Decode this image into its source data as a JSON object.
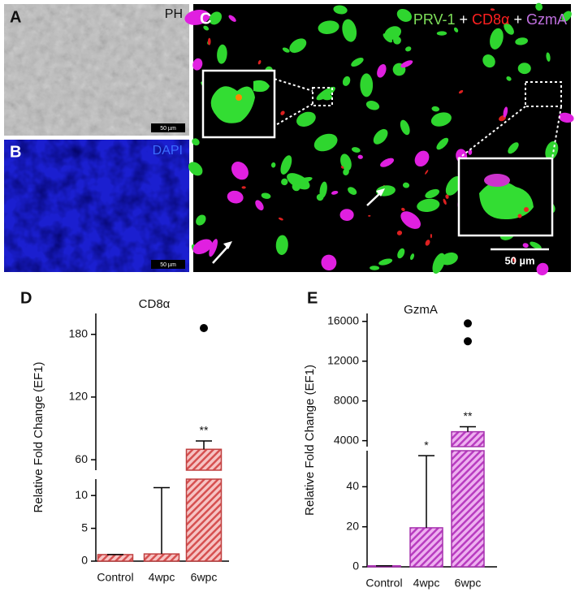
{
  "panels": [
    {
      "label": "A",
      "caption": "PH",
      "scale_bar": "50 µm"
    },
    {
      "label": "B",
      "caption": "DAPI",
      "scale_bar": "50 µm"
    },
    {
      "label": "C",
      "legend": [
        {
          "text": "PRV-1",
          "color": "#7ee05a"
        },
        {
          "text": "+",
          "color": "#ffffff"
        },
        {
          "text": "CD8α",
          "color": "#ff2020"
        },
        {
          "text": "+",
          "color": "#ffffff"
        },
        {
          "text": "GzmA",
          "color": "#c070e0"
        }
      ],
      "scale_bar": "50 µm"
    }
  ],
  "chart_data": [
    {
      "type": "bar",
      "panel_label": "D",
      "title": "CD8α",
      "ylabel": "Relative Fold Change (EF1)",
      "categories": [
        "Control",
        "4wpc",
        "6wpc"
      ],
      "values": [
        1,
        1.1,
        70
      ],
      "errors": [
        0,
        10.1,
        8
      ],
      "color": "#f3a3a3",
      "segments": [
        {
          "ylim": [
            0,
            12.5
          ],
          "yticks": [
            0,
            5,
            10
          ]
        },
        {
          "ylim": [
            50,
            200
          ],
          "yticks": [
            60,
            120,
            180
          ]
        }
      ],
      "outliers": [
        {
          "category": "6wpc",
          "value": 186
        }
      ],
      "annotations": [
        {
          "category": "6wpc",
          "text": "**"
        }
      ]
    },
    {
      "type": "bar",
      "panel_label": "E",
      "title": "GzmA",
      "ylabel": "Relative Fold Change (EF1)",
      "categories": [
        "Control",
        "4wpc",
        "6wpc"
      ],
      "values": [
        0.5,
        19.5,
        4900
      ],
      "errors": [
        0,
        36,
        500
      ],
      "color": "#e07fe6",
      "segments": [
        {
          "ylim": [
            0,
            58
          ],
          "yticks": [
            0,
            20,
            40
          ]
        },
        {
          "ylim": [
            3400,
            16800
          ],
          "yticks": [
            4000,
            8000,
            12000,
            16000
          ]
        }
      ],
      "outliers": [
        {
          "category": "6wpc",
          "value": 14000
        },
        {
          "category": "6wpc",
          "value": 15800
        }
      ],
      "annotations": [
        {
          "category": "4wpc",
          "text": "*"
        },
        {
          "category": "6wpc",
          "text": "**"
        }
      ]
    }
  ]
}
